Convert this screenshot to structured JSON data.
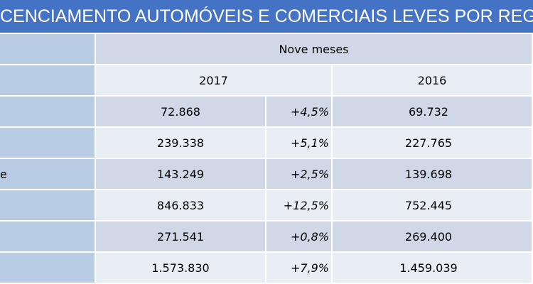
{
  "header": {
    "title": "CENCIAMENTO AUTOMÓVEIS E COMERCIAIS LEVES POR REGIÃ"
  },
  "table": {
    "group_header": "Nove meses",
    "years": [
      "2017",
      "2016"
    ],
    "rows": [
      {
        "v2017": "72.868",
        "change": "+4,5%",
        "v2016": "69.732"
      },
      {
        "v2017": "239.338",
        "change": "+5,1%",
        "v2016": "227.765"
      },
      {
        "label": "e",
        "v2017": "143.249",
        "change": "+2,5%",
        "v2016": "139.698"
      },
      {
        "v2017": "846.833",
        "change": "+12,5%",
        "v2016": "752.445"
      },
      {
        "v2017": "271.541",
        "change": "+0,8%",
        "v2016": "269.400"
      },
      {
        "v2017": "1.573.830",
        "change": "+7,9%",
        "v2016": "1.459.039"
      }
    ]
  }
}
